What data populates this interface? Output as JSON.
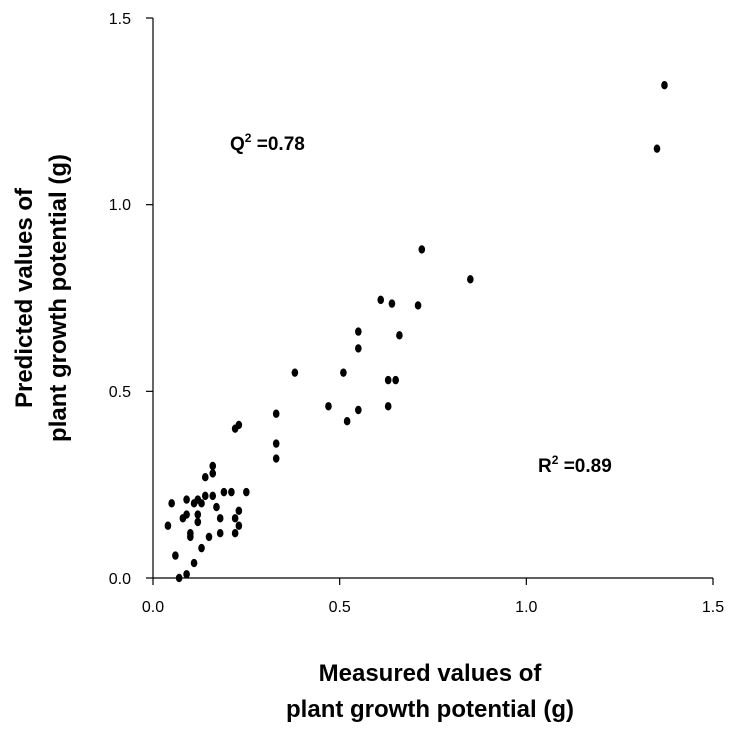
{
  "chart_data": {
    "type": "scatter",
    "xlabel_lines": [
      "Measured values of",
      "plant growth potential (g)"
    ],
    "ylabel_lines": [
      "Predicted values of",
      "plant growth potential (g)"
    ],
    "xlim": [
      0.0,
      1.5
    ],
    "ylim": [
      0.0,
      1.5
    ],
    "xticks": [
      "0.0",
      "0.5",
      "1.0",
      "1.5"
    ],
    "yticks": [
      "0.0",
      "0.5",
      "1.0",
      "1.5"
    ],
    "grid": false,
    "annotations": [
      {
        "base": "Q",
        "sup": "2",
        "rest": " =0.78"
      },
      {
        "base": "R",
        "sup": "2",
        "rest": " =0.89"
      }
    ],
    "marker_color": "#000000",
    "series": [
      {
        "points": [
          [
            1.37,
            1.32
          ],
          [
            1.35,
            1.15
          ],
          [
            0.72,
            0.88
          ],
          [
            0.85,
            0.8
          ],
          [
            0.71,
            0.73
          ],
          [
            0.61,
            0.745
          ],
          [
            0.64,
            0.735
          ],
          [
            0.55,
            0.66
          ],
          [
            0.55,
            0.615
          ],
          [
            0.66,
            0.65
          ],
          [
            0.63,
            0.53
          ],
          [
            0.65,
            0.53
          ],
          [
            0.38,
            0.55
          ],
          [
            0.51,
            0.55
          ],
          [
            0.47,
            0.46
          ],
          [
            0.55,
            0.45
          ],
          [
            0.52,
            0.42
          ],
          [
            0.63,
            0.46
          ],
          [
            0.33,
            0.44
          ],
          [
            0.33,
            0.36
          ],
          [
            0.33,
            0.32
          ],
          [
            0.23,
            0.41
          ],
          [
            0.22,
            0.4
          ],
          [
            0.04,
            0.14
          ],
          [
            0.05,
            0.2
          ],
          [
            0.06,
            0.06
          ],
          [
            0.07,
            0.0
          ],
          [
            0.09,
            0.01
          ],
          [
            0.08,
            0.16
          ],
          [
            0.09,
            0.17
          ],
          [
            0.09,
            0.21
          ],
          [
            0.1,
            0.12
          ],
          [
            0.1,
            0.11
          ],
          [
            0.11,
            0.04
          ],
          [
            0.11,
            0.2
          ],
          [
            0.12,
            0.15
          ],
          [
            0.12,
            0.17
          ],
          [
            0.12,
            0.21
          ],
          [
            0.13,
            0.08
          ],
          [
            0.13,
            0.2
          ],
          [
            0.14,
            0.22
          ],
          [
            0.14,
            0.27
          ],
          [
            0.15,
            0.11
          ],
          [
            0.16,
            0.3
          ],
          [
            0.16,
            0.28
          ],
          [
            0.16,
            0.22
          ],
          [
            0.17,
            0.19
          ],
          [
            0.18,
            0.12
          ],
          [
            0.18,
            0.16
          ],
          [
            0.19,
            0.23
          ],
          [
            0.21,
            0.23
          ],
          [
            0.22,
            0.16
          ],
          [
            0.22,
            0.12
          ],
          [
            0.23,
            0.18
          ],
          [
            0.23,
            0.14
          ],
          [
            0.25,
            0.23
          ]
        ]
      }
    ]
  }
}
